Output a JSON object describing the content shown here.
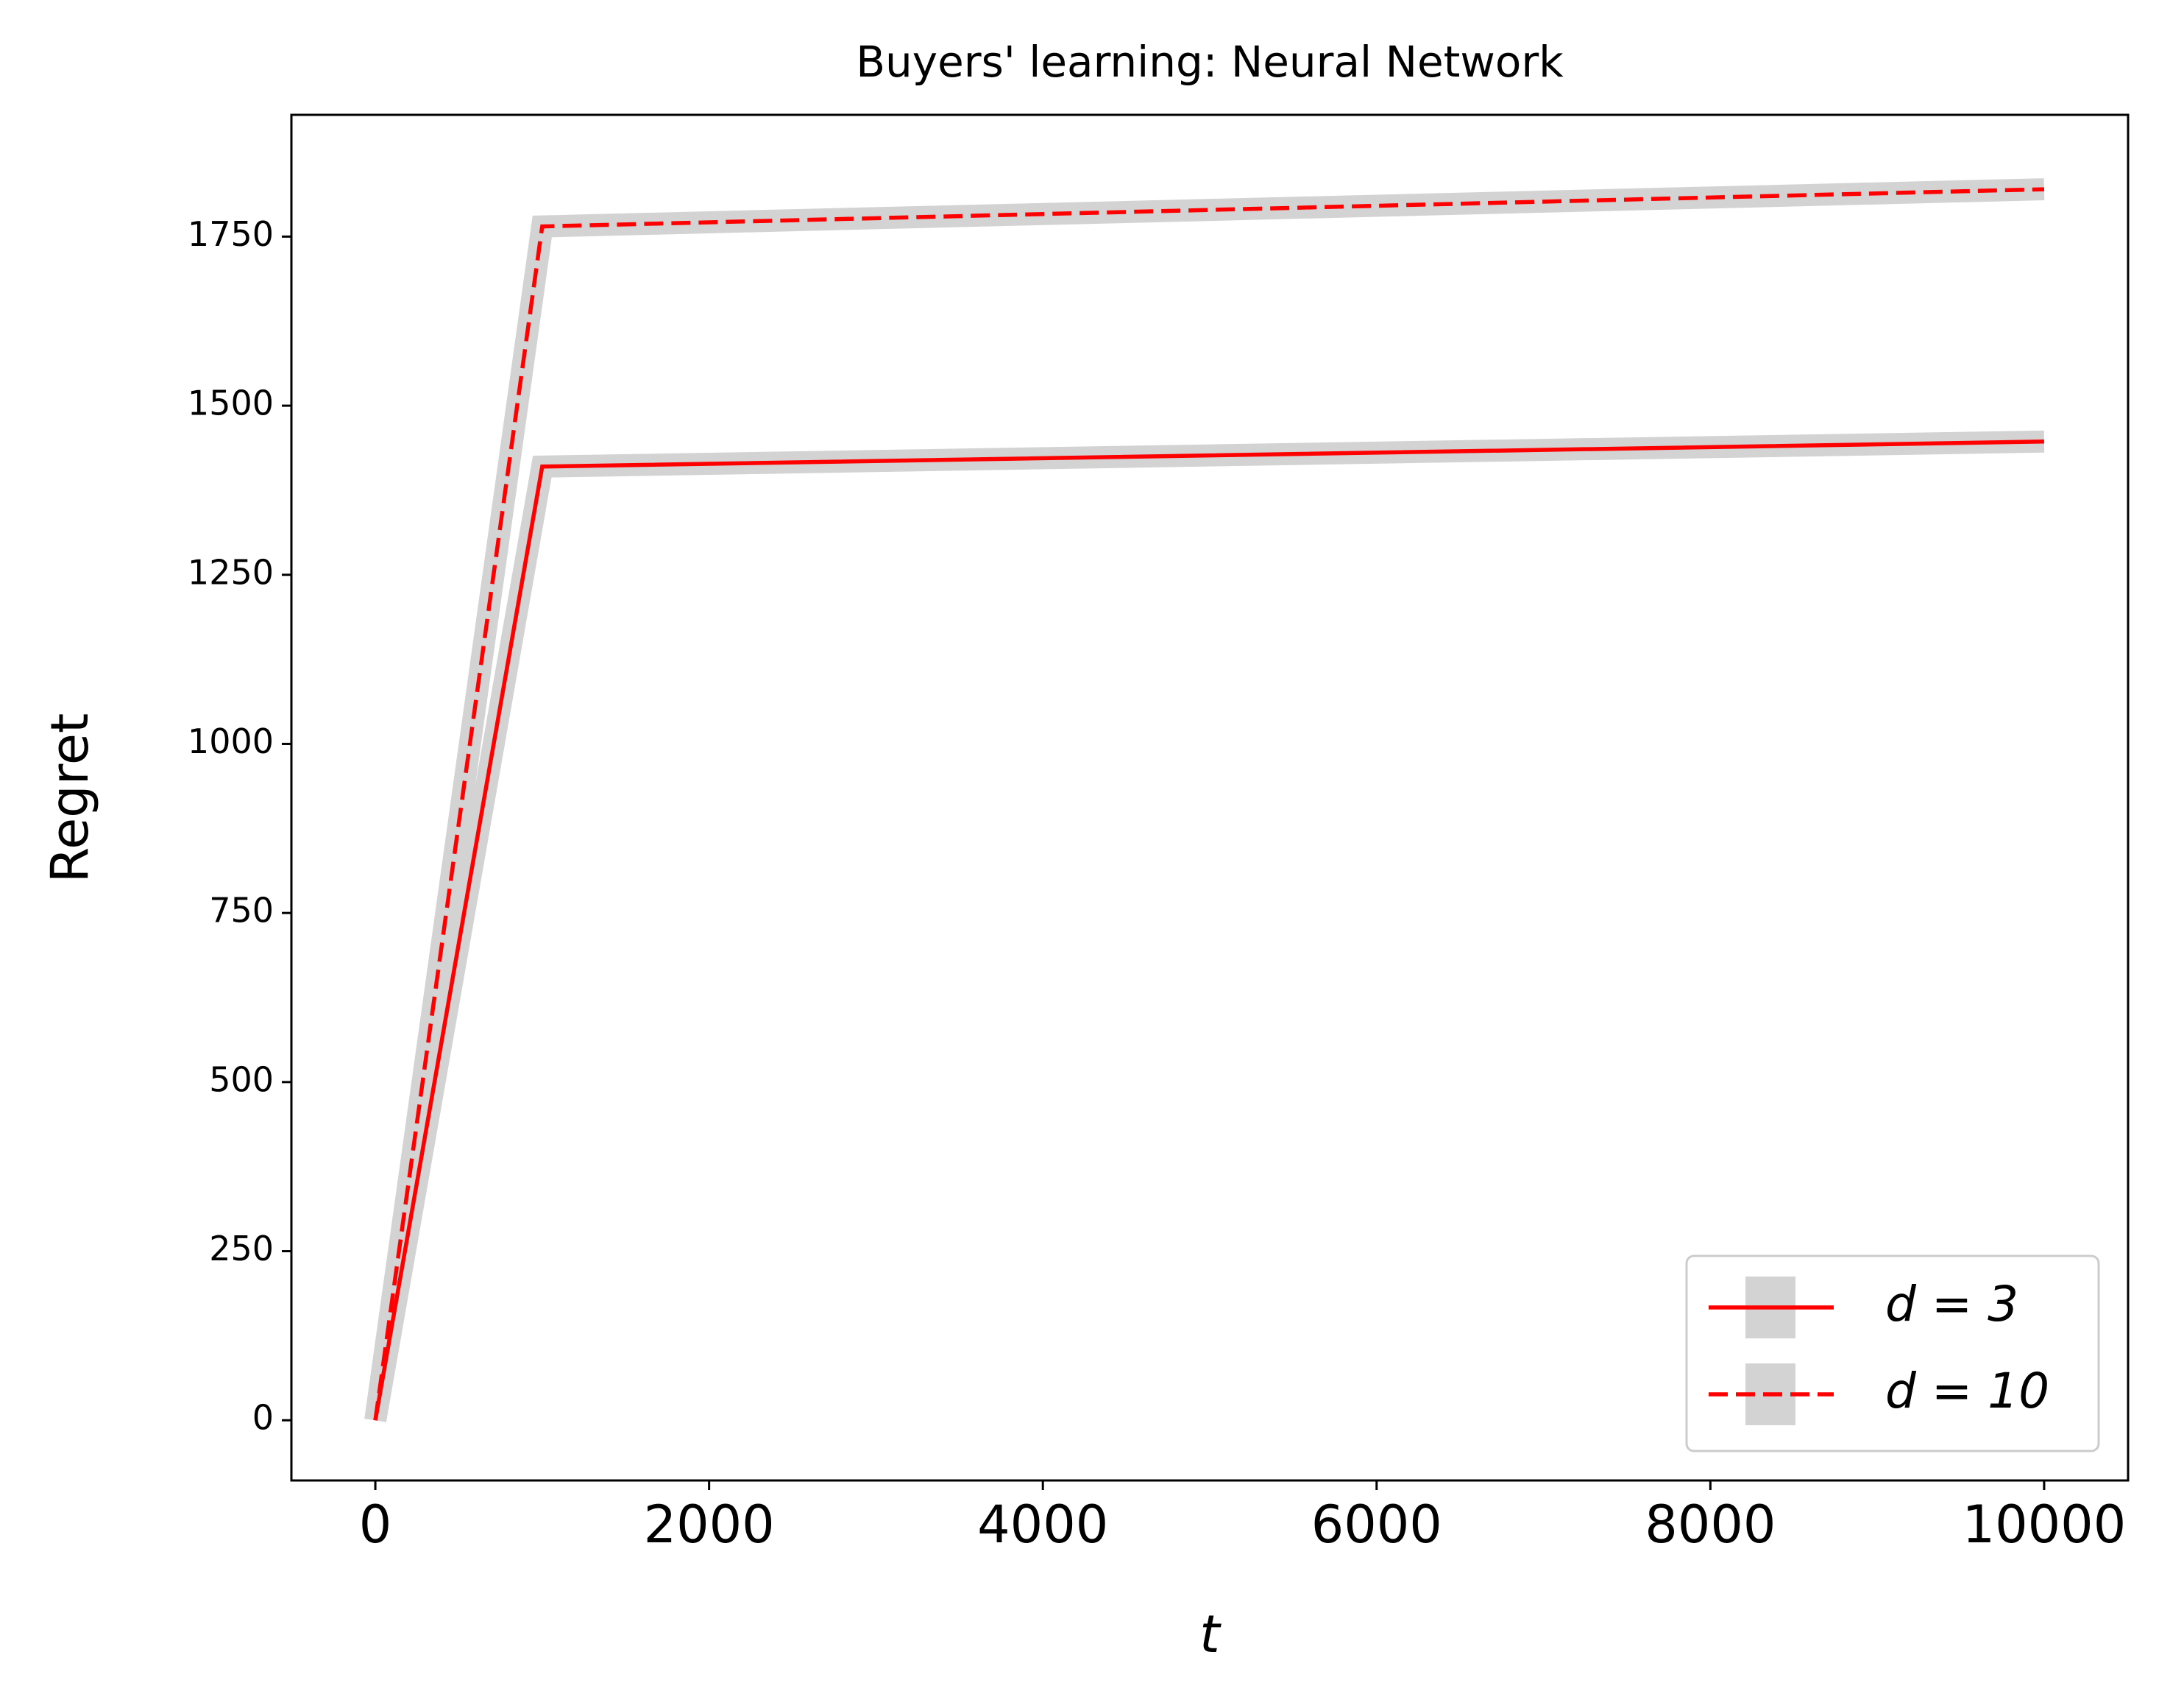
{
  "chart_data": {
    "type": "line",
    "title": "Buyers' learning: Neural Network",
    "x_label": "t",
    "y_label": "Regret",
    "x": [
      0,
      1000,
      10000
    ],
    "series": [
      {
        "name": "d = 3",
        "color": "#ff0000",
        "dash": "solid",
        "band_color": "#d3d3d3",
        "values": [
          0,
          1410,
          1447
        ]
      },
      {
        "name": "d = 10",
        "color": "#ff0000",
        "dash": "dashed",
        "band_color": "#d3d3d3",
        "values": [
          0,
          1765,
          1820
        ]
      }
    ],
    "xlim": [
      -503,
      10503
    ],
    "xticks": [
      0,
      2000,
      4000,
      6000,
      8000,
      10000
    ],
    "ylim": [
      -89,
      1930
    ],
    "yticks": [
      0,
      250,
      500,
      750,
      1000,
      1250,
      1500,
      1750
    ],
    "grid": false,
    "legend": "lower right"
  }
}
